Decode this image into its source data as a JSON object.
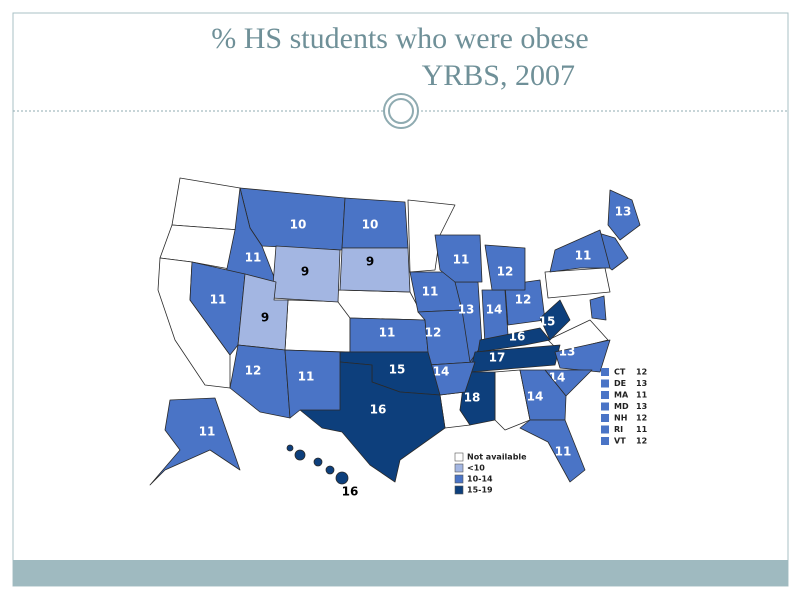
{
  "header": {
    "title_line1": "% HS students who were obese",
    "title_line2": "YRBS, 2007"
  },
  "map": {
    "regions": [
      {
        "value": 10,
        "color": "#4a74c6"
      },
      {
        "value": 10,
        "color": "#4a74c6"
      },
      {
        "value": 11,
        "color": "#4a74c6"
      },
      {
        "value": 9,
        "color": "#a3b6e2"
      },
      {
        "value": 9,
        "color": "#a3b6e2"
      },
      {
        "value": 11,
        "color": "#4a74c6"
      },
      {
        "value": 9,
        "color": "#a3b6e2"
      },
      {
        "value": 11,
        "color": "#4a74c6"
      },
      {
        "value": 11,
        "color": "#4a74c6"
      },
      {
        "value": 12,
        "color": "#4a74c6"
      },
      {
        "value": 13,
        "color": "#4a74c6"
      },
      {
        "value": 14,
        "color": "#4a74c6"
      },
      {
        "value": 12,
        "color": "#4a74c6"
      },
      {
        "value": 11,
        "color": "#4a74c6"
      },
      {
        "value": 12,
        "color": "#4a74c6"
      },
      {
        "value": 11,
        "color": "#4a74c6"
      },
      {
        "value": 13,
        "color": "#4a74c6"
      },
      {
        "value": 16,
        "color": "#0d3f7c"
      },
      {
        "value": 15,
        "color": "#0d3f7c"
      },
      {
        "value": 17,
        "color": "#0d3f7c"
      },
      {
        "value": 13,
        "color": "#4a74c6"
      },
      {
        "value": 14,
        "color": "#4a74c6"
      },
      {
        "value": 14,
        "color": "#4a74c6"
      },
      {
        "value": 11,
        "color": "#4a74c6"
      },
      {
        "value": 18,
        "color": "#0d3f7c"
      },
      {
        "value": 14,
        "color": "#4a74c6"
      },
      {
        "value": 15,
        "color": "#0d3f7c"
      },
      {
        "value": 16,
        "color": "#0d3f7c"
      },
      {
        "value": 12,
        "color": "#4a74c6"
      },
      {
        "value": 11,
        "color": "#4a74c6"
      },
      {
        "value": 11,
        "color": "#4a74c6"
      },
      {
        "value": 16,
        "color": "#0d3f7c"
      }
    ],
    "legend": [
      {
        "label": "Not available",
        "color": "#ffffff"
      },
      {
        "label": "<10",
        "color": "#a3b6e2"
      },
      {
        "label": "10-14",
        "color": "#4a74c6"
      },
      {
        "label": "15-19",
        "color": "#0d3f7c"
      }
    ],
    "small_states": [
      {
        "state": "CT",
        "value": 12,
        "color": "#4a74c6"
      },
      {
        "state": "DE",
        "value": 13,
        "color": "#4a74c6"
      },
      {
        "state": "MA",
        "value": 11,
        "color": "#4a74c6"
      },
      {
        "state": "MD",
        "value": 13,
        "color": "#4a74c6"
      },
      {
        "state": "NH",
        "value": 12,
        "color": "#4a74c6"
      },
      {
        "state": "RI",
        "value": 11,
        "color": "#4a74c6"
      },
      {
        "state": "VT",
        "value": 12,
        "color": "#4a74c6"
      }
    ]
  }
}
